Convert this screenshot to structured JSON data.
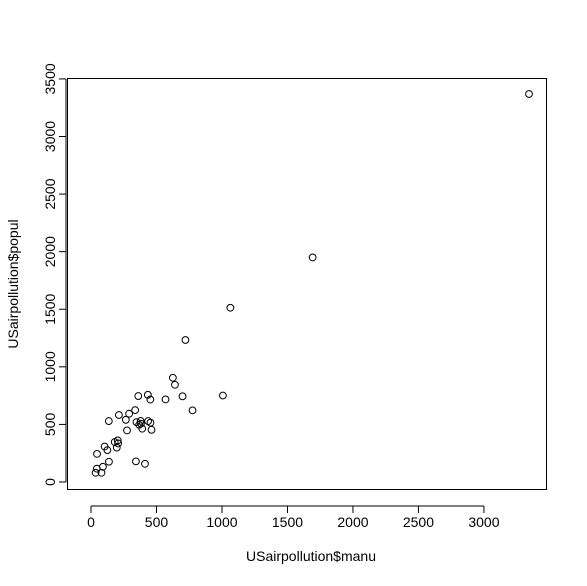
{
  "chart_data": {
    "type": "scatter",
    "title": "",
    "xlabel": "USairpollution$manu",
    "ylabel": "USairpollution$popul",
    "xlim": [
      0,
      3344
    ],
    "ylim": [
      0,
      3369
    ],
    "x_ticks": [
      0,
      500,
      1000,
      1500,
      2000,
      2500,
      3000
    ],
    "y_ticks": [
      0,
      500,
      1000,
      1500,
      2000,
      2500,
      3000,
      3500
    ],
    "grid": false,
    "legend": "none",
    "marker": "open-circle",
    "colors": {
      "points": "#000000",
      "background": "#ffffff"
    },
    "series": [
      {
        "points": [
          [
            35,
            80
          ],
          [
            44,
            116
          ],
          [
            46,
            244
          ],
          [
            80,
            80
          ],
          [
            91,
            132
          ],
          [
            104,
            308
          ],
          [
            125,
            277
          ],
          [
            136,
            529
          ],
          [
            137,
            176
          ],
          [
            181,
            347
          ],
          [
            197,
            299
          ],
          [
            204,
            361
          ],
          [
            207,
            335
          ],
          [
            213,
            582
          ],
          [
            266,
            540
          ],
          [
            275,
            448
          ],
          [
            291,
            593
          ],
          [
            337,
            624
          ],
          [
            343,
            179
          ],
          [
            347,
            520
          ],
          [
            361,
            746
          ],
          [
            368,
            497
          ],
          [
            379,
            531
          ],
          [
            381,
            507
          ],
          [
            391,
            463
          ],
          [
            412,
            158
          ],
          [
            434,
            757
          ],
          [
            436,
            529
          ],
          [
            453,
            716
          ],
          [
            454,
            515
          ],
          [
            462,
            453
          ],
          [
            569,
            717
          ],
          [
            625,
            905
          ],
          [
            641,
            844
          ],
          [
            699,
            744
          ],
          [
            721,
            1233
          ],
          [
            775,
            622
          ],
          [
            1007,
            751
          ],
          [
            1064,
            1513
          ],
          [
            1692,
            1950
          ],
          [
            3344,
            3369
          ]
        ]
      }
    ]
  }
}
